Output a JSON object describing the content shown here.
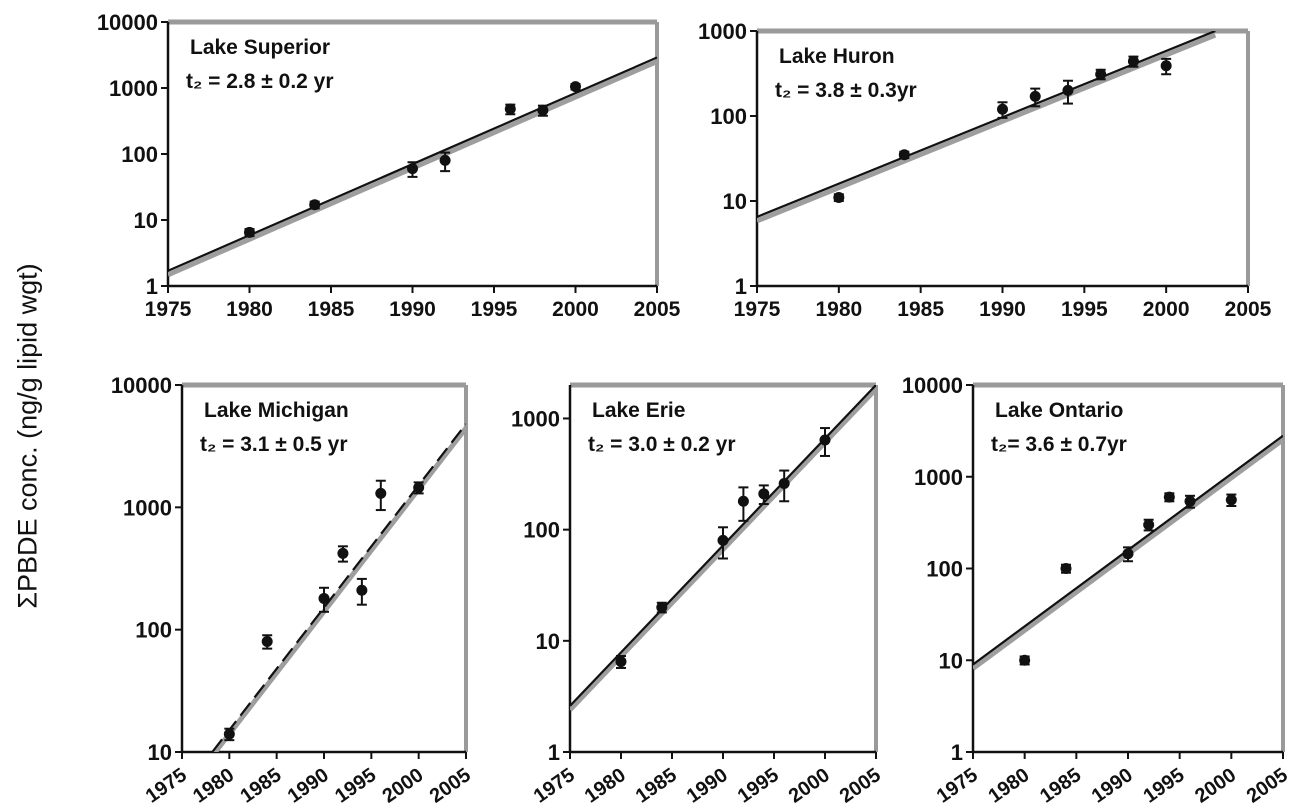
{
  "y_axis_label": "ΣPBDE conc. (ng/g lipid wgt)",
  "chart_data": [
    {
      "type": "scatter",
      "title": "Lake Superior",
      "annotation": "t₂ = 2.8 ± 0.2 yr",
      "scale": "log",
      "xlim": [
        1975,
        2005
      ],
      "ylim": [
        1,
        10000
      ],
      "x_ticks": [
        "1975",
        "1980",
        "1985",
        "1990",
        "1995",
        "2000",
        "2005"
      ],
      "y_ticks": [
        "1",
        "10",
        "100",
        "1000",
        "10000"
      ],
      "x": [
        1980,
        1984,
        1990,
        1992,
        1996,
        1998,
        2000
      ],
      "values": [
        6.5,
        17,
        60,
        80,
        480,
        460,
        1050
      ],
      "errors": [
        0.8,
        2,
        15,
        25,
        80,
        80,
        100
      ],
      "fit": {
        "x": [
          1975,
          2005
        ],
        "y": [
          1.7,
          2900
        ]
      }
    },
    {
      "type": "scatter",
      "title": "Lake Huron",
      "annotation": "t₂ = 3.8 ± 0.3yr",
      "scale": "log",
      "xlim": [
        1975,
        2005
      ],
      "ylim": [
        1,
        1000
      ],
      "x_ticks": [
        "1975",
        "1980",
        "1985",
        "1990",
        "1995",
        "2000",
        "2005"
      ],
      "y_ticks": [
        "1",
        "10",
        "100",
        "1000"
      ],
      "x": [
        1980,
        1984,
        1990,
        1992,
        1994,
        1996,
        1998,
        2000
      ],
      "values": [
        11,
        35,
        120,
        170,
        200,
        310,
        440,
        390
      ],
      "errors": [
        1,
        3,
        25,
        40,
        60,
        40,
        60,
        80
      ],
      "fit": {
        "x": [
          1975,
          2003
        ],
        "y": [
          6.5,
          1000
        ]
      }
    },
    {
      "type": "scatter",
      "title": "Lake Michigan",
      "annotation": "t₂ = 3.1 ± 0.5 yr",
      "scale": "log",
      "xlim": [
        1975,
        2005
      ],
      "ylim": [
        10,
        10000
      ],
      "x_ticks": [
        "1975",
        "1980",
        "1985",
        "1990",
        "1995",
        "2000",
        "2005"
      ],
      "y_ticks": [
        "10",
        "100",
        "1000",
        "10000"
      ],
      "x": [
        1980,
        1984,
        1990,
        1992,
        1994,
        1996,
        2000
      ],
      "values": [
        14,
        80,
        180,
        420,
        210,
        1300,
        1450
      ],
      "errors": [
        1.5,
        10,
        40,
        60,
        50,
        350,
        150
      ],
      "fit": {
        "x": [
          1978.2,
          2005
        ],
        "y": [
          10,
          4800
        ]
      }
    },
    {
      "type": "scatter",
      "title": "Lake Erie",
      "annotation": "t₂ = 3.0 ± 0.2 yr",
      "scale": "log",
      "xlim": [
        1975,
        2005
      ],
      "ylim": [
        1,
        2000
      ],
      "x_ticks": [
        "1975",
        "1980",
        "1985",
        "1990",
        "1995",
        "2000",
        "2005"
      ],
      "y_ticks": [
        "1",
        "10",
        "100",
        "1000"
      ],
      "x": [
        1980,
        1984,
        1990,
        1992,
        1994,
        1996,
        2000
      ],
      "values": [
        6.5,
        20,
        80,
        180,
        210,
        260,
        640
      ],
      "errors": [
        0.8,
        2,
        25,
        60,
        40,
        80,
        180
      ],
      "fit": {
        "x": [
          1975,
          2005
        ],
        "y": [
          2.6,
          2000
        ]
      }
    },
    {
      "type": "scatter",
      "title": "Lake Ontario",
      "annotation": "t₂= 3.6 ± 0.7yr",
      "scale": "log",
      "xlim": [
        1975,
        2005
      ],
      "ylim": [
        1,
        10000
      ],
      "x_ticks": [
        "1975",
        "1980",
        "1985",
        "1990",
        "1995",
        "2000",
        "2005"
      ],
      "y_ticks": [
        "1",
        "10",
        "100",
        "1000",
        "10000"
      ],
      "x": [
        1980,
        1984,
        1990,
        1992,
        1994,
        1996,
        2000
      ],
      "values": [
        10,
        100,
        145,
        300,
        600,
        540,
        560
      ],
      "errors": [
        1,
        10,
        25,
        40,
        60,
        80,
        80
      ],
      "fit": {
        "x": [
          1975,
          2005
        ],
        "y": [
          9,
          2800
        ]
      }
    }
  ]
}
